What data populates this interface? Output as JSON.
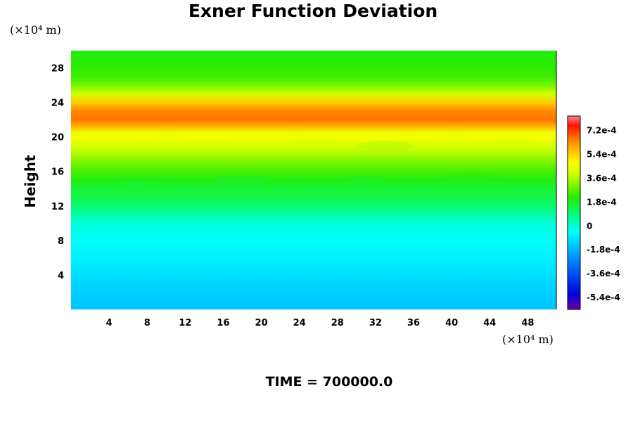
{
  "chart_data": {
    "type": "heatmap",
    "title": "Exner Function Deviation",
    "ylabel": "Height",
    "xlabel": "",
    "x_unit": "(×10⁴ m)",
    "y_unit": "(×10⁴ m)",
    "xlim": [
      0,
      51
    ],
    "ylim": [
      0,
      30
    ],
    "x_ticks": [
      4,
      8,
      12,
      16,
      20,
      24,
      28,
      32,
      36,
      40,
      44,
      48
    ],
    "y_ticks": [
      4,
      8,
      12,
      16,
      20,
      24,
      28
    ],
    "colorbar": {
      "ticks": [
        "7.2e-4",
        "5.4e-4",
        "3.6e-4",
        "1.8e-4",
        "0",
        "-1.8e-4",
        "-3.6e-4",
        "-5.4e-4"
      ],
      "tick_values": [
        0.00072,
        0.00054,
        0.00036,
        0.00018,
        0,
        -0.00018,
        -0.00036,
        -0.00054
      ],
      "range": [
        -0.00063,
        0.00083
      ],
      "colormap": "rainbow"
    },
    "height_profile": {
      "heights": [
        0,
        1,
        2,
        3,
        4,
        6,
        8,
        10,
        12,
        13,
        14,
        15,
        16,
        17,
        18,
        19,
        19.5,
        20,
        20.5,
        21,
        22,
        23,
        24,
        25,
        26,
        27,
        28,
        30
      ],
      "values": [
        -0.00015,
        -0.00014,
        -0.00013,
        -0.00012,
        -0.0001,
        -7e-05,
        -4e-05,
        -1e-05,
        0.0001,
        0.00014,
        0.00016,
        0.0002,
        0.00025,
        0.0003,
        0.00036,
        0.00042,
        0.00044,
        0.00047,
        0.00045,
        0.00056,
        0.00066,
        0.00064,
        0.00055,
        0.0004,
        0.0003,
        0.00024,
        0.00022,
        0.0002
      ]
    },
    "annotation": "TIME = 700000.0"
  }
}
